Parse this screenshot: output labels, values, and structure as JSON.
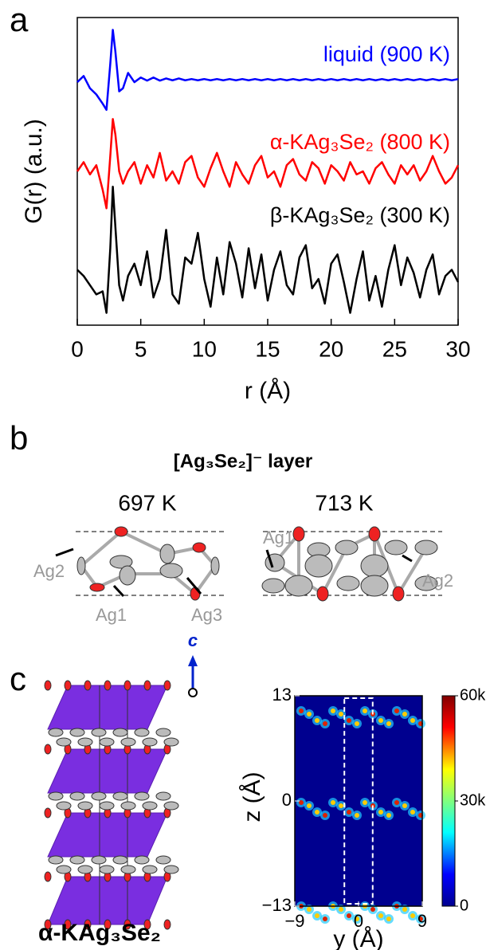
{
  "chart_data": [
    {
      "type": "line",
      "y_label": "G(r) (a.u.)",
      "x_label": "r (Å)",
      "xlim": [
        0,
        30
      ],
      "xticks": [
        0,
        5,
        10,
        15,
        20,
        25,
        30
      ],
      "ylim": [
        0,
        10
      ],
      "x": [
        0,
        0.5,
        1,
        1.5,
        2,
        2.3,
        2.6,
        2.8,
        3,
        3.3,
        3.6,
        4,
        4.5,
        5,
        5.5,
        6,
        6.5,
        7,
        7.5,
        8,
        8.5,
        9,
        9.5,
        10,
        10.5,
        11,
        11.5,
        12,
        12.5,
        13,
        13.5,
        14,
        14.5,
        15,
        15.5,
        16,
        16.5,
        17,
        17.5,
        18,
        18.5,
        19,
        19.5,
        20,
        20.5,
        21,
        21.5,
        22,
        22.5,
        23,
        23.5,
        24,
        24.5,
        25,
        25.5,
        26,
        26.5,
        27,
        27.5,
        28,
        28.5,
        29,
        29.5,
        30
      ],
      "series": [
        {
          "name": "liquid (900 K)",
          "color": "#0000ff",
          "values": [
            7.9,
            8.1,
            7.7,
            7.5,
            7.2,
            7.0,
            8.5,
            9.6,
            8.9,
            7.6,
            7.7,
            8.2,
            7.9,
            8.05,
            7.95,
            8.05,
            7.95,
            8.02,
            7.96,
            8.02,
            7.96,
            8.0,
            7.96,
            8.0,
            7.96,
            8.0,
            7.96,
            8.0,
            7.96,
            8.0,
            7.96,
            8.0,
            7.96,
            8.0,
            7.96,
            8.0,
            7.96,
            8.0,
            7.96,
            8.0,
            7.96,
            8.0,
            7.96,
            8.0,
            7.96,
            8.0,
            7.96,
            8.0,
            7.96,
            8.0,
            7.96,
            8.0,
            7.96,
            8.0,
            7.96,
            8.0,
            7.96,
            8.0,
            7.96,
            8.0,
            7.96,
            8.0,
            7.96,
            8.0
          ]
        },
        {
          "name": "α-KAg₃Se₂ (800 K)",
          "color": "#ff0000",
          "values": [
            5.0,
            5.3,
            4.9,
            5.2,
            4.4,
            3.8,
            5.5,
            6.7,
            6.2,
            5.0,
            4.6,
            5.0,
            5.3,
            4.6,
            5.2,
            4.8,
            5.6,
            4.7,
            5.0,
            4.6,
            5.3,
            5.5,
            4.8,
            4.5,
            5.1,
            5.6,
            5.0,
            4.5,
            5.3,
            4.9,
            4.6,
            5.2,
            5.5,
            4.8,
            5.0,
            4.5,
            5.2,
            5.4,
            4.9,
            4.7,
            5.3,
            5.1,
            4.6,
            5.2,
            5.0,
            4.7,
            5.3,
            4.9,
            5.0,
            4.6,
            5.1,
            5.3,
            4.9,
            4.6,
            5.2,
            4.9,
            5.2,
            4.7,
            5.0,
            5.5,
            5.0,
            4.6,
            4.8,
            5.2
          ]
        },
        {
          "name": "β-KAg₃Se₂ (300 K)",
          "color": "#000000",
          "values": [
            1.8,
            1.6,
            1.3,
            1.0,
            1.1,
            0.4,
            2.5,
            4.5,
            3.2,
            1.3,
            0.8,
            1.6,
            2.0,
            1.3,
            2.4,
            0.9,
            1.5,
            3.1,
            1.0,
            0.7,
            2.2,
            2.0,
            3.0,
            1.5,
            0.6,
            2.2,
            1.0,
            2.7,
            2.0,
            0.9,
            2.5,
            1.2,
            2.3,
            0.8,
            1.8,
            2.4,
            1.3,
            1.0,
            2.2,
            2.6,
            1.2,
            1.5,
            0.7,
            2.0,
            2.3,
            1.4,
            0.4,
            1.5,
            2.4,
            0.8,
            1.6,
            0.6,
            1.8,
            2.6,
            1.3,
            2.2,
            1.7,
            0.9,
            1.8,
            2.3,
            1.0,
            1.6,
            1.8,
            1.4
          ]
        }
      ]
    },
    {
      "type": "heatmap",
      "x_label": "y (Å)",
      "y_label": "z (Å)",
      "xlim": [
        -9,
        9
      ],
      "xticks": [
        {
          "value": -9,
          "label": "−9"
        },
        0,
        9
      ],
      "ylim": [
        -13,
        13
      ],
      "yticks": [
        {
          "value": -13,
          "label": "−13"
        },
        0,
        13
      ],
      "clim": [
        0,
        60000
      ],
      "cticks": [
        0,
        {
          "value": 30000,
          "label": "30k"
        },
        {
          "value": 60000,
          "label": "60k"
        }
      ]
    }
  ],
  "panels": {
    "a": {
      "label": "a"
    },
    "b": {
      "label": "b",
      "title": "[Ag₃Se₂]⁻ layer",
      "left": {
        "temperature": "697 K",
        "labels": [
          "Ag2",
          "Ag1",
          "Ag3"
        ]
      },
      "right": {
        "temperature": "713 K",
        "labels": [
          "Ag1",
          "Ag2"
        ]
      }
    },
    "c": {
      "label": "c",
      "axis": "c",
      "caption": "α-KAg₃Se₂"
    }
  }
}
